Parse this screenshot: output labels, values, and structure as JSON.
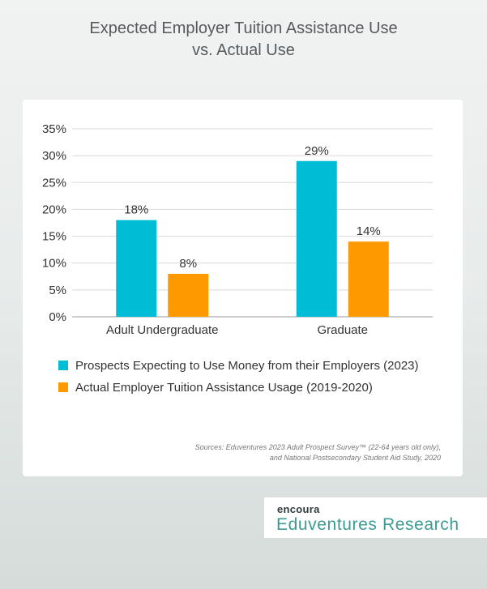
{
  "title": {
    "line1": "Expected Employer Tuition Assistance Use",
    "line2": "vs. Actual Use"
  },
  "legend": {
    "item1": "Prospects Expecting to Use Money from their Employers (2023)",
    "item2": "Actual Employer Tuition Assistance Usage (2019-2020)"
  },
  "source": {
    "line1": "Sources: Eduventures 2023 Adult Prospect Survey™ (22-64 years old only),",
    "line2": "and National Postsecondary Student Aid Study, 2020"
  },
  "brand": {
    "encoura": "encoura",
    "eduventures": "Eduventures Research"
  },
  "colors": {
    "series1": "#00bcd4",
    "series2": "#ff9900"
  },
  "chart_data": {
    "type": "bar",
    "categories": [
      "Adult Undergraduate",
      "Graduate"
    ],
    "series": [
      {
        "name": "Prospects Expecting to Use Money from their Employers (2023)",
        "values": [
          18,
          29
        ],
        "labels": [
          "18%",
          "29%"
        ]
      },
      {
        "name": "Actual Employer Tuition Assistance Usage (2019-2020)",
        "values": [
          8,
          14
        ],
        "labels": [
          "8%",
          "14%"
        ]
      }
    ],
    "ylim": [
      0,
      35
    ],
    "yticks": [
      0,
      5,
      10,
      15,
      20,
      25,
      30,
      35
    ],
    "ytick_labels": [
      "0%",
      "5%",
      "10%",
      "15%",
      "20%",
      "25%",
      "30%",
      "35%"
    ],
    "grid": true,
    "legend_position": "bottom"
  }
}
